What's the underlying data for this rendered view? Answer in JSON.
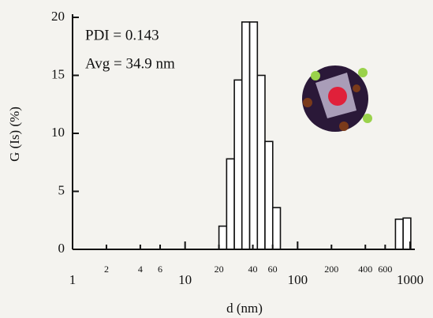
{
  "chart_data": {
    "type": "histogram",
    "xlabel": "d (nm)",
    "ylabel": "G (Is) (%)",
    "annotations": [
      "PDI = 0.143",
      "Avg = 34.9 nm"
    ],
    "bins": [
      20.0,
      23.4,
      27.4,
      32.0,
      37.5,
      43.9,
      51.3,
      60.1,
      70.3,
      82.2,
      96.2,
      112.6,
      131.7,
      154.1,
      180.3,
      211.0,
      246.8,
      288.8,
      337.9,
      395.3,
      462.5,
      541.2,
      633.2,
      740.8,
      866.8,
      1014
    ],
    "values": [
      2.0,
      7.8,
      14.6,
      19.6,
      19.6,
      15.0,
      9.3,
      3.6,
      0,
      0,
      0,
      0,
      0,
      0,
      0,
      0,
      0,
      0,
      0,
      0,
      0,
      0,
      0,
      2.6,
      2.7
    ],
    "color": "#ffffff",
    "xlim": [
      1,
      1000
    ],
    "xscale": "log",
    "xticks": [
      1,
      2,
      4,
      6,
      10,
      20,
      40,
      60,
      100,
      200,
      400,
      600,
      1000
    ],
    "ylim": [
      0,
      20
    ],
    "yticks": [
      0,
      5,
      10,
      15,
      20
    ]
  }
}
